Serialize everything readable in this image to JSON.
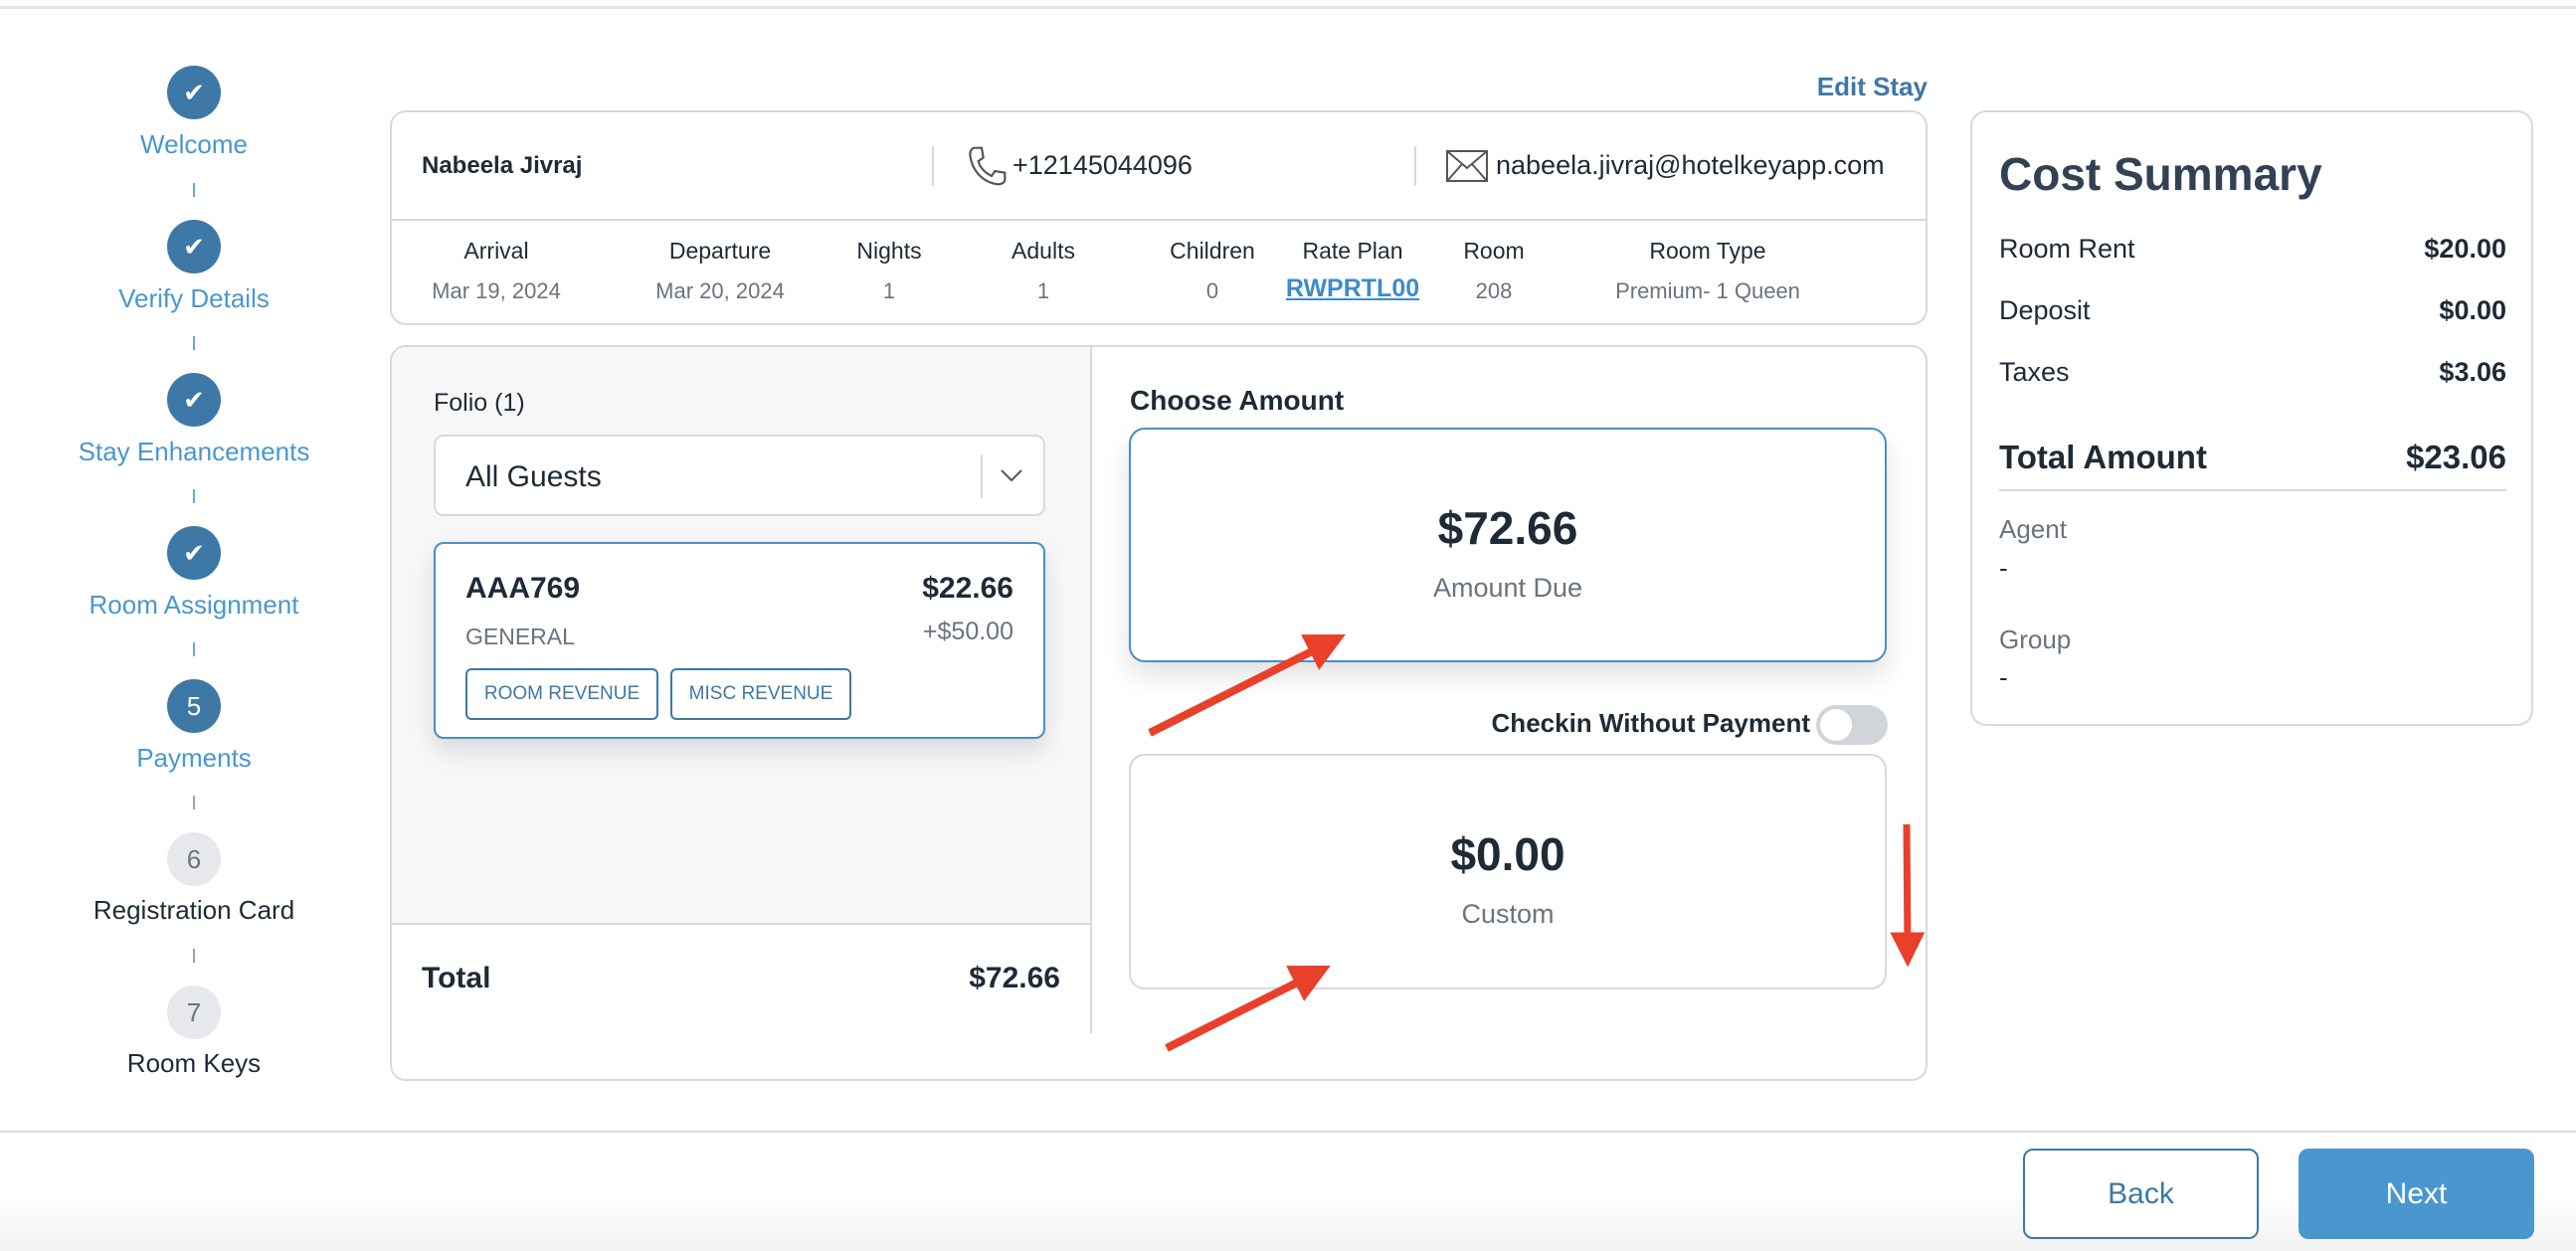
{
  "stepper": [
    {
      "label": "Welcome",
      "status": "done",
      "icon": "check-icon"
    },
    {
      "label": "Verify Details",
      "status": "done",
      "icon": "check-icon"
    },
    {
      "label": "Stay Enhancements",
      "status": "done",
      "icon": "check-icon"
    },
    {
      "label": "Room Assignment",
      "status": "done",
      "icon": "check-icon"
    },
    {
      "label": "Payments",
      "status": "active",
      "number": "5"
    },
    {
      "label": "Registration Card",
      "status": "pending",
      "number": "6"
    },
    {
      "label": "Room Keys",
      "status": "pending",
      "number": "7"
    }
  ],
  "edit_stay": "Edit Stay",
  "guest": {
    "name": "Nabeela Jivraj",
    "phone": "+12145044096",
    "email": "nabeela.jivraj@hotelkeyapp.com"
  },
  "stay": {
    "columns": [
      {
        "header": "Arrival",
        "value": "Mar 19, 2024"
      },
      {
        "header": "Departure",
        "value": "Mar 20, 2024"
      },
      {
        "header": "Nights",
        "value": "1"
      },
      {
        "header": "Adults",
        "value": "1"
      },
      {
        "header": "Children",
        "value": "0"
      },
      {
        "header": "Rate Plan",
        "value": "RWPRTL00"
      },
      {
        "header": "Room",
        "value": "208"
      },
      {
        "header": "Room Type",
        "value": "Premium- 1 Queen"
      }
    ]
  },
  "folio": {
    "title": "Folio (1)",
    "selected": "All Guests",
    "card": {
      "code": "AAA769",
      "amount": "$22.66",
      "type": "GENERAL",
      "extra": "+$50.00",
      "tags": [
        "ROOM REVENUE",
        "MISC REVENUE"
      ]
    },
    "total_label": "Total",
    "total_value": "$72.66"
  },
  "choose": {
    "title": "Choose Amount",
    "due_amount": "$72.66",
    "due_label": "Amount Due",
    "toggle_label": "Checkin Without Payment",
    "toggle_on": false,
    "custom_amount": "$0.00",
    "custom_label": "Custom"
  },
  "cost": {
    "title": "Cost Summary",
    "rows": [
      {
        "label": "Room Rent",
        "value": "$20.00"
      },
      {
        "label": "Deposit",
        "value": "$0.00"
      },
      {
        "label": "Taxes",
        "value": "$3.06"
      }
    ],
    "total_label": "Total Amount",
    "total_value": "$23.06",
    "agent_label": "Agent",
    "agent_value": "-",
    "group_label": "Group",
    "group_value": "-"
  },
  "footer": {
    "back": "Back",
    "next": "Next"
  },
  "colors": {
    "accent": "#3d78a6",
    "link": "#4a97cf",
    "next_button": "#4a97cf",
    "annotation": "#e8402a"
  }
}
